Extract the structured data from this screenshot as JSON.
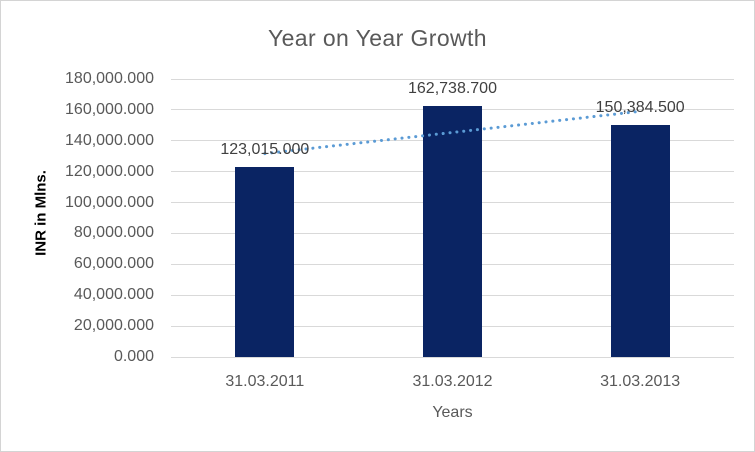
{
  "chart_data": {
    "type": "bar",
    "title": "Year on Year Growth",
    "xlabel": "Years",
    "ylabel": "INR in Mlns.",
    "categories": [
      "31.03.2011",
      "31.03.2012",
      "31.03.2013"
    ],
    "values": [
      123015.0,
      162738.7,
      150384.5
    ],
    "data_labels": [
      "123,015.000",
      "162,738.700",
      "150,384.500"
    ],
    "ylim": [
      0,
      180000
    ],
    "y_tick_step": 20000,
    "y_tick_labels": [
      "0.000",
      "20,000.000",
      "40,000.000",
      "60,000.000",
      "80,000.000",
      "100,000.000",
      "120,000.000",
      "140,000.000",
      "160,000.000",
      "180,000.000"
    ],
    "grid": true,
    "legend": "none",
    "trendline": {
      "type": "linear",
      "style": "dotted",
      "from_value": 131694.65,
      "to_value": 159064.15
    },
    "colors": {
      "bar": "#0a2463",
      "trendline": "#5b9bd5",
      "gridline": "#d9d9d9",
      "title_text": "#595959",
      "tick_text": "#595959",
      "data_label_text": "#404040",
      "y_axis_title_text": "#000000",
      "border": "#d4d4d4",
      "background": "#ffffff"
    }
  }
}
